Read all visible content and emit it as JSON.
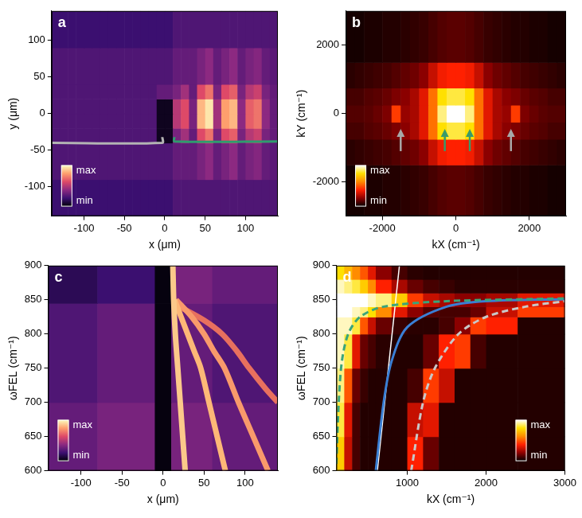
{
  "chart_data": [
    {
      "type": "heatmap",
      "label": "a",
      "x_label": "x (μm)",
      "y_label": "y (μm)",
      "xlim": [
        -140,
        140
      ],
      "xticks": [
        -100,
        -50,
        0,
        50,
        100
      ],
      "ylim": [
        -140,
        140
      ],
      "yticks": [
        -100,
        -50,
        0,
        50,
        100
      ],
      "grid": false,
      "cells": {
        "x_edges": [
          -140,
          -130,
          -120,
          -110,
          -100,
          -90,
          -80,
          -70,
          -60,
          -50,
          -40,
          -30,
          -20,
          -10,
          0,
          10,
          20,
          30,
          40,
          50,
          60,
          70,
          80,
          90,
          100,
          110,
          120,
          130,
          140
        ],
        "y_edges": [
          -140,
          -90,
          -40,
          -20,
          0,
          20,
          40,
          90,
          140
        ],
        "values": [
          [
            0.2,
            0.2,
            0.2,
            0.2,
            0.2,
            0.2,
            0.2,
            0.2,
            0.2,
            0.2,
            0.2,
            0.2,
            0.2,
            0.2,
            0.2,
            0.25,
            0.25,
            0.25,
            0.25,
            0.25,
            0.25,
            0.25,
            0.25,
            0.25,
            0.25,
            0.25,
            0.25,
            0.25
          ],
          [
            0.25,
            0.25,
            0.25,
            0.25,
            0.25,
            0.25,
            0.25,
            0.25,
            0.25,
            0.25,
            0.25,
            0.25,
            0.25,
            0.25,
            0.25,
            0.3,
            0.3,
            0.3,
            0.35,
            0.4,
            0.3,
            0.35,
            0.4,
            0.3,
            0.35,
            0.38,
            0.3,
            0.28
          ],
          [
            0.25,
            0.25,
            0.25,
            0.25,
            0.25,
            0.25,
            0.25,
            0.25,
            0.25,
            0.25,
            0.25,
            0.25,
            0.25,
            0.05,
            0.05,
            0.35,
            0.45,
            0.3,
            0.6,
            0.7,
            0.35,
            0.6,
            0.65,
            0.35,
            0.5,
            0.55,
            0.35,
            0.3
          ],
          [
            0.25,
            0.25,
            0.25,
            0.25,
            0.25,
            0.25,
            0.25,
            0.25,
            0.25,
            0.25,
            0.25,
            0.25,
            0.25,
            0.05,
            0.05,
            0.5,
            0.6,
            0.35,
            0.85,
            0.95,
            0.45,
            0.8,
            0.85,
            0.4,
            0.65,
            0.7,
            0.4,
            0.3
          ],
          [
            0.25,
            0.25,
            0.25,
            0.25,
            0.25,
            0.25,
            0.25,
            0.25,
            0.25,
            0.25,
            0.25,
            0.25,
            0.25,
            0.05,
            0.05,
            0.5,
            0.6,
            0.35,
            0.85,
            0.95,
            0.45,
            0.8,
            0.85,
            0.4,
            0.65,
            0.7,
            0.4,
            0.3
          ],
          [
            0.25,
            0.25,
            0.25,
            0.25,
            0.25,
            0.25,
            0.25,
            0.25,
            0.25,
            0.25,
            0.25,
            0.25,
            0.25,
            0.3,
            0.3,
            0.35,
            0.45,
            0.3,
            0.6,
            0.7,
            0.35,
            0.6,
            0.65,
            0.35,
            0.5,
            0.55,
            0.35,
            0.3
          ],
          [
            0.25,
            0.25,
            0.25,
            0.25,
            0.25,
            0.25,
            0.25,
            0.25,
            0.25,
            0.25,
            0.25,
            0.25,
            0.25,
            0.25,
            0.25,
            0.3,
            0.3,
            0.3,
            0.35,
            0.4,
            0.3,
            0.35,
            0.4,
            0.3,
            0.35,
            0.38,
            0.3,
            0.28
          ],
          [
            0.2,
            0.2,
            0.2,
            0.2,
            0.2,
            0.2,
            0.2,
            0.2,
            0.2,
            0.2,
            0.2,
            0.2,
            0.2,
            0.2,
            0.2,
            0.25,
            0.25,
            0.25,
            0.25,
            0.25,
            0.25,
            0.25,
            0.25,
            0.25,
            0.25,
            0.25,
            0.25,
            0.25
          ]
        ]
      },
      "colorbar": {
        "range": [
          0,
          1
        ],
        "ticks": [
          {
            "value": 1,
            "label": "max"
          },
          {
            "value": 0,
            "label": "min"
          }
        ],
        "colors": [
          "#000004",
          "#3b0f70",
          "#8c2981",
          "#de4968",
          "#fe9f6d",
          "#fcfdbf"
        ]
      },
      "series": [
        {
          "color": "#b4b4b4",
          "line_style": "solid",
          "type": "line",
          "x": [
            -140,
            -3,
            -3
          ],
          "y": [
            -40,
            -40,
            -32
          ]
        },
        {
          "color": "#2e9c6e",
          "line_style": "solid",
          "type": "line",
          "x": [
            12,
            12,
            140
          ],
          "y": [
            -32,
            -38,
            -38
          ]
        }
      ]
    },
    {
      "type": "heatmap",
      "label": "b",
      "x_label": "kX (cm⁻¹)",
      "y_label": "kY (cm⁻¹)",
      "xlim": [
        -3000,
        3000
      ],
      "xticks": [
        -2000,
        0,
        2000
      ],
      "ylim": [
        -3000,
        3000
      ],
      "yticks": [
        -2000,
        0,
        2000
      ],
      "grid": false,
      "cells": {
        "x_edges": [
          -3000,
          -2750,
          -2500,
          -2250,
          -2000,
          -1750,
          -1500,
          -1250,
          -1000,
          -750,
          -500,
          -250,
          0,
          250,
          500,
          750,
          1000,
          1250,
          1500,
          1750,
          2000,
          2250,
          2500,
          2750,
          3000
        ],
        "y_edges": [
          -3000,
          -1500,
          -750,
          -250,
          250,
          750,
          1500,
          3000
        ],
        "values": [
          [
            0.03,
            0.03,
            0.04,
            0.04,
            0.05,
            0.05,
            0.06,
            0.07,
            0.08,
            0.1,
            0.12,
            0.13,
            0.13,
            0.12,
            0.1,
            0.08,
            0.07,
            0.06,
            0.05,
            0.05,
            0.04,
            0.04,
            0.03,
            0.03
          ],
          [
            0.06,
            0.07,
            0.08,
            0.09,
            0.1,
            0.12,
            0.14,
            0.16,
            0.2,
            0.3,
            0.38,
            0.4,
            0.4,
            0.38,
            0.3,
            0.2,
            0.16,
            0.14,
            0.12,
            0.1,
            0.09,
            0.08,
            0.07,
            0.06
          ],
          [
            0.1,
            0.1,
            0.12,
            0.13,
            0.15,
            0.18,
            0.2,
            0.25,
            0.35,
            0.55,
            0.8,
            0.85,
            0.85,
            0.8,
            0.55,
            0.35,
            0.25,
            0.2,
            0.18,
            0.15,
            0.13,
            0.12,
            0.1,
            0.1
          ],
          [
            0.12,
            0.12,
            0.13,
            0.15,
            0.18,
            0.45,
            0.22,
            0.25,
            0.35,
            0.55,
            0.9,
            1.0,
            1.0,
            0.9,
            0.55,
            0.35,
            0.25,
            0.22,
            0.45,
            0.18,
            0.15,
            0.13,
            0.12,
            0.12
          ],
          [
            0.1,
            0.1,
            0.12,
            0.13,
            0.15,
            0.18,
            0.2,
            0.25,
            0.35,
            0.55,
            0.8,
            0.85,
            0.85,
            0.8,
            0.55,
            0.35,
            0.25,
            0.2,
            0.18,
            0.15,
            0.13,
            0.12,
            0.1,
            0.1
          ],
          [
            0.06,
            0.07,
            0.08,
            0.09,
            0.1,
            0.12,
            0.14,
            0.16,
            0.2,
            0.3,
            0.38,
            0.4,
            0.4,
            0.38,
            0.3,
            0.2,
            0.16,
            0.14,
            0.12,
            0.1,
            0.09,
            0.08,
            0.07,
            0.06
          ],
          [
            0.03,
            0.03,
            0.04,
            0.04,
            0.05,
            0.05,
            0.06,
            0.07,
            0.08,
            0.1,
            0.12,
            0.13,
            0.13,
            0.12,
            0.1,
            0.08,
            0.07,
            0.06,
            0.05,
            0.05,
            0.04,
            0.04,
            0.03,
            0.03
          ]
        ]
      },
      "colorbar": {
        "range": [
          0,
          1
        ],
        "ticks": [
          {
            "value": 1,
            "label": "max"
          },
          {
            "value": 0,
            "label": "min"
          }
        ],
        "colors": [
          "#000000",
          "#8b0000",
          "#ff2000",
          "#ff8c00",
          "#ffe000",
          "#ffffff"
        ]
      },
      "arrows": [
        {
          "color": "#a8a8a8",
          "x": -1500,
          "y_from": -1100,
          "y_to": -450
        },
        {
          "color": "#3a9a6a",
          "x": -300,
          "y_from": -1100,
          "y_to": -450
        },
        {
          "color": "#3a9a6a",
          "x": 380,
          "y_from": -1100,
          "y_to": -450
        },
        {
          "color": "#a8a8a8",
          "x": 1500,
          "y_from": -1100,
          "y_to": -450
        }
      ]
    },
    {
      "type": "heatmap",
      "label": "c",
      "x_label": "x (μm)",
      "y_label": "ωFEL (cm⁻¹)",
      "xlim": [
        -140,
        140
      ],
      "xticks": [
        -100,
        -50,
        0,
        50,
        100
      ],
      "ylim": [
        600,
        900
      ],
      "yticks": [
        600,
        650,
        700,
        750,
        800,
        850,
        900
      ],
      "grid": false,
      "cells": {
        "x_edges": [
          -140,
          -80,
          -10,
          10,
          60,
          140
        ],
        "y_edges": [
          600,
          700,
          845,
          900
        ],
        "values": [
          [
            0.3,
            0.35,
            0.02,
            0.35,
            0.3
          ],
          [
            0.25,
            0.3,
            0.02,
            0.3,
            0.25
          ],
          [
            0.15,
            0.2,
            0.02,
            0.35,
            0.3
          ]
        ]
      },
      "colorbar": {
        "range": [
          0,
          1
        ],
        "ticks": [
          {
            "value": 1,
            "label": "max"
          },
          {
            "value": 0,
            "label": "min"
          }
        ],
        "colors": [
          "#000004",
          "#3b0f70",
          "#8c2981",
          "#de4968",
          "#fe9f6d",
          "#fcfdbf"
        ]
      },
      "series": [
        {
          "color": "#fcc98a",
          "line_style": "solid",
          "type": "band",
          "x": [
            12,
            13,
            15,
            18,
            21,
            24,
            27
          ],
          "y": [
            900,
            850,
            800,
            750,
            700,
            650,
            600
          ]
        },
        {
          "color": "#fdb877",
          "line_style": "solid",
          "type": "band",
          "x": [
            14,
            22,
            30,
            38,
            46,
            56,
            66,
            76
          ],
          "y": [
            850,
            825,
            800,
            775,
            750,
            700,
            650,
            600
          ]
        },
        {
          "color": "#f99a6b",
          "line_style": "solid",
          "type": "band",
          "x": [
            16,
            35,
            50,
            62,
            75,
            92,
            110,
            128
          ],
          "y": [
            850,
            825,
            800,
            775,
            750,
            700,
            650,
            600
          ]
        },
        {
          "color": "#e8705e",
          "line_style": "solid",
          "type": "band",
          "x": [
            20,
            50,
            72,
            90,
            105,
            125,
            140
          ],
          "y": [
            840,
            820,
            800,
            775,
            750,
            720,
            700
          ]
        }
      ]
    },
    {
      "type": "heatmap",
      "label": "d",
      "x_label": "kX (cm⁻¹)",
      "y_label": "ωFEL (cm⁻¹)",
      "xlim": [
        100,
        3000
      ],
      "xticks": [
        1000,
        2000,
        3000
      ],
      "ylim": [
        600,
        900
      ],
      "yticks": [
        600,
        650,
        700,
        750,
        800,
        850,
        900
      ],
      "grid": false,
      "cells": {
        "x_edges": [
          100,
          200,
          300,
          400,
          500,
          600,
          800,
          1000,
          1200,
          1400,
          1600,
          1800,
          2000,
          2400,
          3000
        ],
        "y_edges": [
          600,
          650,
          700,
          750,
          800,
          825,
          840,
          860,
          880,
          900
        ],
        "values": [
          [
            0.75,
            0.3,
            0.1,
            0.05,
            0.05,
            0.05,
            0.05,
            0.4,
            0.15,
            0.05,
            0.05,
            0.05,
            0.05,
            0.05
          ],
          [
            0.85,
            0.35,
            0.1,
            0.05,
            0.05,
            0.05,
            0.05,
            0.3,
            0.35,
            0.05,
            0.05,
            0.05,
            0.05,
            0.05
          ],
          [
            0.9,
            0.5,
            0.15,
            0.08,
            0.05,
            0.05,
            0.05,
            0.1,
            0.45,
            0.3,
            0.05,
            0.05,
            0.05,
            0.05
          ],
          [
            0.95,
            0.85,
            0.35,
            0.15,
            0.1,
            0.06,
            0.05,
            0.05,
            0.15,
            0.4,
            0.45,
            0.1,
            0.05,
            0.05
          ],
          [
            0.95,
            0.95,
            0.85,
            0.5,
            0.3,
            0.15,
            0.08,
            0.06,
            0.06,
            0.1,
            0.2,
            0.45,
            0.4,
            0.05
          ],
          [
            1,
            1,
            0.95,
            0.9,
            0.8,
            0.6,
            0.35,
            0.2,
            0.12,
            0.1,
            0.1,
            0.15,
            0.3,
            0.45
          ],
          [
            1,
            1,
            1,
            1,
            0.95,
            0.9,
            0.75,
            0.45,
            0.3,
            0.25,
            0.2,
            0.2,
            0.25,
            0.35
          ],
          [
            0.95,
            0.9,
            0.85,
            0.75,
            0.6,
            0.4,
            0.25,
            0.15,
            0.1,
            0.08,
            0.06,
            0.06,
            0.06,
            0.06
          ],
          [
            0.8,
            0.7,
            0.6,
            0.5,
            0.35,
            0.2,
            0.1,
            0.06,
            0.05,
            0.05,
            0.05,
            0.05,
            0.05,
            0.05
          ]
        ]
      },
      "colorbar": {
        "range": [
          0,
          1
        ],
        "ticks": [
          {
            "value": 1,
            "label": "max"
          },
          {
            "value": 0,
            "label": "min"
          }
        ],
        "colors": [
          "#000000",
          "#8b0000",
          "#ff2000",
          "#ff8c00",
          "#ffe000",
          "#ffffff"
        ]
      },
      "series": [
        {
          "color": "#3aa57a",
          "line_style": "dashed",
          "type": "line",
          "x": [
            100,
            130,
            170,
            250,
            400,
            700,
            1500,
            3000
          ],
          "y": [
            610,
            700,
            760,
            800,
            825,
            840,
            848,
            852
          ]
        },
        {
          "color": "#c8c8c8",
          "line_style": "dashed",
          "type": "line",
          "x": [
            1050,
            1200,
            1350,
            1650,
            2000,
            2500,
            3000
          ],
          "y": [
            600,
            700,
            750,
            800,
            825,
            840,
            848
          ]
        },
        {
          "color": "#3a7fd5",
          "line_style": "solid",
          "type": "line",
          "x": [
            600,
            700,
            800,
            1000,
            1500,
            2000,
            3000
          ],
          "y": [
            600,
            700,
            760,
            810,
            840,
            848,
            851
          ]
        },
        {
          "color": "#ffffff",
          "line_style": "solid",
          "type": "thin",
          "x": [
            620,
            900
          ],
          "y": [
            600,
            900
          ]
        }
      ]
    }
  ]
}
